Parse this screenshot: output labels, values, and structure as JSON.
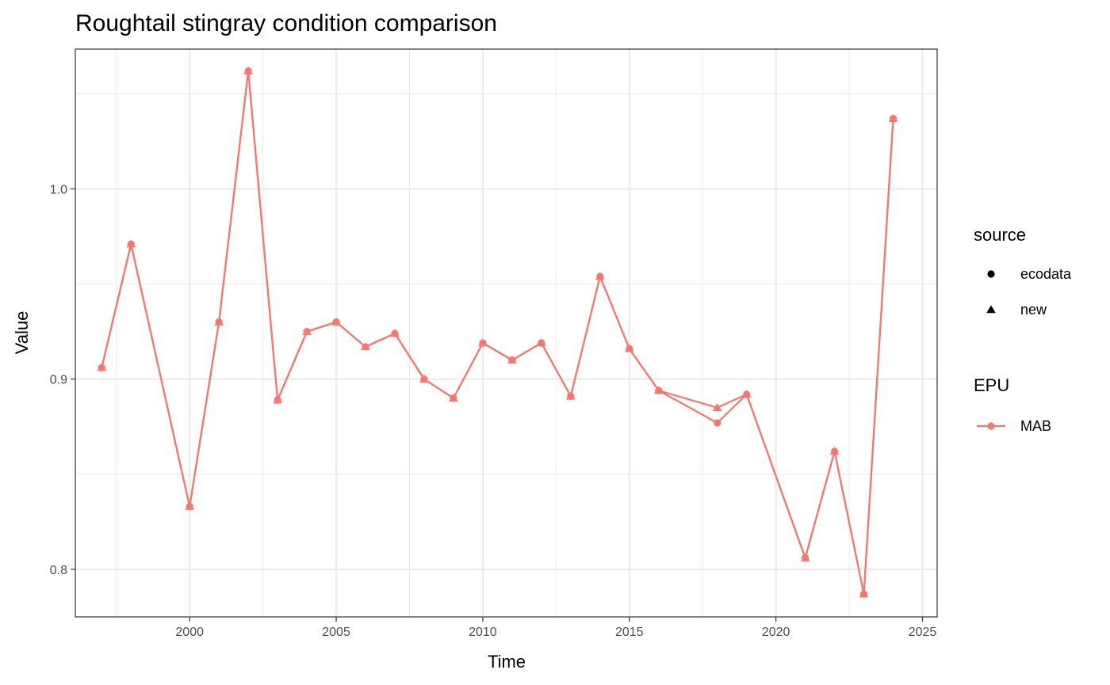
{
  "chart_data": {
    "type": "line",
    "title": "Roughtail stingray condition comparison",
    "xlabel": "Time",
    "ylabel": "Value",
    "xlim": [
      1996.1,
      2025.5
    ],
    "ylim": [
      0.775,
      1.0735
    ],
    "x_ticks": [
      2000,
      2005,
      2010,
      2015,
      2020,
      2025
    ],
    "x_tick_labels": [
      "2000",
      "2005",
      "2010",
      "2015",
      "2020",
      "2025"
    ],
    "x_minor_ticks": [
      1997.5,
      2002.5,
      2007.5,
      2012.5,
      2017.5,
      2022.5
    ],
    "y_ticks": [
      0.8,
      0.9,
      1.0
    ],
    "y_tick_labels": [
      "0.8",
      "0.9",
      "1.0"
    ],
    "y_minor_ticks": [
      0.85,
      0.95,
      1.05
    ],
    "grid": true,
    "legend_position": "right",
    "color": "#F8766D",
    "series": [
      {
        "source": "ecodata",
        "x": [
          1997,
          1998,
          2000,
          2001,
          2002,
          2003,
          2004,
          2005,
          2006,
          2007,
          2008,
          2009,
          2010,
          2011,
          2012,
          2013,
          2014,
          2015,
          2016,
          2018,
          2019,
          2021,
          2022,
          2023,
          2024
        ],
        "y": [
          0.906,
          0.971,
          0.833,
          0.93,
          1.062,
          0.889,
          0.925,
          0.93,
          0.917,
          0.924,
          0.9,
          0.89,
          0.919,
          0.91,
          0.919,
          0.891,
          0.954,
          0.916,
          0.894,
          0.877,
          0.892,
          0.806,
          0.862,
          0.787,
          1.037
        ]
      },
      {
        "source": "new",
        "x": [
          1997,
          1998,
          2000,
          2001,
          2002,
          2003,
          2004,
          2005,
          2006,
          2007,
          2008,
          2009,
          2010,
          2011,
          2012,
          2013,
          2014,
          2015,
          2016,
          2018,
          2019,
          2021,
          2022,
          2023,
          2024
        ],
        "y": [
          0.906,
          0.971,
          0.833,
          0.93,
          1.062,
          0.889,
          0.925,
          0.93,
          0.917,
          0.924,
          0.9,
          0.89,
          0.919,
          0.91,
          0.919,
          0.891,
          0.954,
          0.916,
          0.894,
          0.885,
          0.892,
          0.806,
          0.862,
          0.787,
          1.037
        ]
      }
    ],
    "legends": [
      {
        "title": "source",
        "entries": [
          {
            "label": "ecodata",
            "marker": "circle"
          },
          {
            "label": "new",
            "marker": "triangle"
          }
        ]
      },
      {
        "title": "EPU",
        "entries": [
          {
            "label": "MAB",
            "marker": "line-circle"
          }
        ]
      }
    ]
  }
}
